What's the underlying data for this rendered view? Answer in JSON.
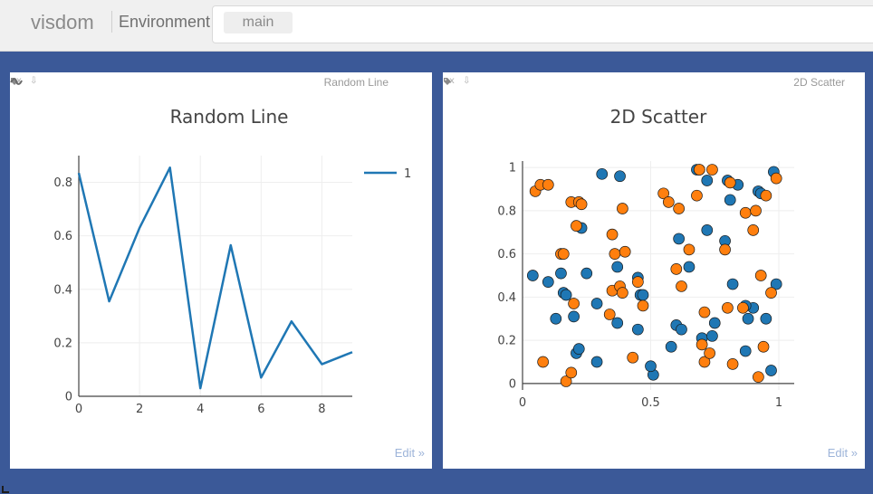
{
  "header": {
    "brand": "visdom",
    "environment_label": "Environment",
    "environment_tag": "main"
  },
  "panes": [
    {
      "close": "x",
      "download": "⇩",
      "window_title": "Random Line",
      "edit_label": "Edit »",
      "chart_data": {
        "type": "line",
        "title": "Random Line",
        "xlabel": "",
        "ylabel": "",
        "xlim": [
          0,
          9
        ],
        "ylim": [
          0,
          0.9
        ],
        "xticks": [
          0,
          2,
          4,
          6,
          8
        ],
        "yticks": [
          0,
          0.2,
          0.4,
          0.6,
          0.8
        ],
        "ytick_labels": [
          "0",
          "0.2",
          "0.4",
          "0.6",
          "0.8"
        ],
        "legend": "top-right",
        "grid": true,
        "series": [
          {
            "name": "1",
            "x": [
              0,
              1,
              2,
              3,
              4,
              5,
              6,
              7,
              8,
              9
            ],
            "y": [
              0.835,
              0.355,
              0.63,
              0.855,
              0.03,
              0.565,
              0.07,
              0.28,
              0.12,
              0.165
            ],
            "color": "#1f77b4"
          }
        ]
      }
    },
    {
      "close": "x",
      "download": "⇩",
      "window_title": "2D Scatter",
      "edit_label": "Edit »",
      "chart_data": {
        "type": "scatter",
        "title": "2D Scatter",
        "xlabel": "",
        "ylabel": "",
        "xlim": [
          0,
          1.06
        ],
        "ylim": [
          -0.03,
          1.03
        ],
        "xticks": [
          0,
          0.5,
          1
        ],
        "xtick_labels": [
          "0",
          "0.5",
          "1"
        ],
        "yticks": [
          0,
          0.2,
          0.4,
          0.6,
          0.8,
          1
        ],
        "ytick_labels": [
          "0",
          "0.2",
          "0.4",
          "0.6",
          "0.8",
          "1"
        ],
        "legend": "none",
        "grid": true,
        "series": [
          {
            "color": "#1f77b4",
            "x": [
              0.04,
              0.1,
              0.15,
              0.16,
              0.17,
              0.13,
              0.2,
              0.21,
              0.22,
              0.25,
              0.23,
              0.29,
              0.31,
              0.29,
              0.37,
              0.37,
              0.38,
              0.45,
              0.46,
              0.47,
              0.45,
              0.51,
              0.5,
              0.58,
              0.6,
              0.61,
              0.62,
              0.65,
              0.68,
              0.69,
              0.7,
              0.72,
              0.72,
              0.74,
              0.75,
              0.79,
              0.8,
              0.81,
              0.82,
              0.84,
              0.87,
              0.88,
              0.9,
              0.92,
              0.93,
              0.95,
              0.97,
              0.98,
              0.99,
              0.87
            ],
            "y": [
              0.5,
              0.47,
              0.51,
              0.42,
              0.41,
              0.3,
              0.31,
              0.14,
              0.16,
              0.51,
              0.72,
              0.1,
              0.97,
              0.37,
              0.28,
              0.54,
              0.96,
              0.25,
              0.41,
              0.41,
              0.49,
              0.04,
              0.08,
              0.17,
              0.27,
              0.67,
              0.25,
              0.54,
              0.99,
              0.99,
              0.21,
              0.71,
              0.94,
              0.22,
              0.28,
              0.66,
              0.94,
              0.85,
              0.46,
              0.92,
              0.15,
              0.3,
              0.35,
              0.89,
              0.88,
              0.3,
              0.06,
              0.98,
              0.46,
              0.36
            ]
          },
          {
            "color": "#ff7f0e",
            "x": [
              0.05,
              0.07,
              0.08,
              0.1,
              0.15,
              0.16,
              0.17,
              0.19,
              0.19,
              0.2,
              0.21,
              0.22,
              0.23,
              0.34,
              0.35,
              0.35,
              0.36,
              0.38,
              0.39,
              0.4,
              0.39,
              0.43,
              0.45,
              0.47,
              0.55,
              0.57,
              0.6,
              0.61,
              0.62,
              0.65,
              0.68,
              0.69,
              0.7,
              0.71,
              0.71,
              0.73,
              0.74,
              0.79,
              0.8,
              0.81,
              0.82,
              0.86,
              0.87,
              0.9,
              0.91,
              0.92,
              0.93,
              0.94,
              0.95,
              0.97,
              0.99
            ],
            "y": [
              0.89,
              0.92,
              0.1,
              0.92,
              0.6,
              0.6,
              0.01,
              0.84,
              0.05,
              0.37,
              0.73,
              0.84,
              0.83,
              0.32,
              0.69,
              0.43,
              0.6,
              0.45,
              0.42,
              0.61,
              0.81,
              0.12,
              0.47,
              0.36,
              0.88,
              0.84,
              0.53,
              0.81,
              0.45,
              0.62,
              0.87,
              0.99,
              0.18,
              0.1,
              0.33,
              0.14,
              0.99,
              0.62,
              0.35,
              0.93,
              0.09,
              0.35,
              0.79,
              0.71,
              0.8,
              0.03,
              0.5,
              0.17,
              0.87,
              0.42,
              0.95
            ]
          }
        ]
      }
    }
  ]
}
